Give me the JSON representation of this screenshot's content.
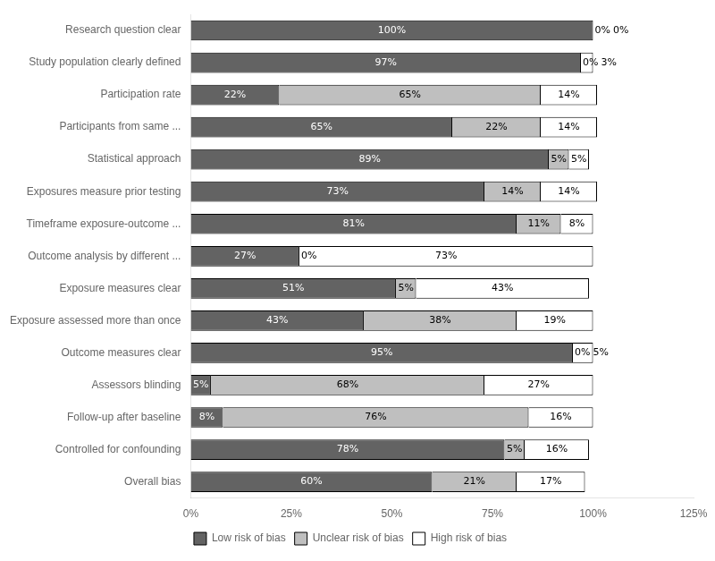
{
  "chart_data": {
    "type": "bar",
    "orientation": "horizontal",
    "stacked": true,
    "categories": [
      "Research question clear",
      "Study population clearly defined",
      "Participation rate",
      "Participants from same ...",
      "Statistical approach",
      "Exposures measure prior testing",
      "Timeframe exposure-outcome ...",
      "Outcome analysis by different ...",
      "Exposure measures clear",
      "Exposure assessed more than once",
      "Outcome measures clear",
      "Assessors blinding",
      "Follow-up after baseline",
      "Controlled for confounding",
      "Overall bias"
    ],
    "series": [
      {
        "name": "Low risk of bias",
        "color": "#636363",
        "values": [
          100,
          97,
          22,
          65,
          89,
          73,
          81,
          27,
          51,
          43,
          95,
          5,
          8,
          78,
          60
        ],
        "value_labels": [
          "100%",
          "97%",
          "22%",
          "65%",
          "89%",
          "73%",
          "81%",
          "27%",
          "51%",
          "43%",
          "95%",
          "5%",
          "8%",
          "78%",
          "60%"
        ]
      },
      {
        "name": "Unclear risk of bias",
        "color": "#BFBFBF",
        "values": [
          0,
          0,
          65,
          22,
          5,
          14,
          11,
          0,
          5,
          38,
          0,
          68,
          76,
          5,
          21
        ],
        "value_labels": [
          "0%",
          "0%",
          "65%",
          "22%",
          "5%",
          "14%",
          "11%",
          "0%",
          "5%",
          "38%",
          "0%",
          "68%",
          "76%",
          "5%",
          "21%"
        ]
      },
      {
        "name": "High risk of bias",
        "color": "#FFFFFF",
        "values": [
          0,
          3,
          14,
          14,
          5,
          14,
          8,
          73,
          43,
          19,
          5,
          27,
          16,
          16,
          17
        ],
        "value_labels": [
          "0%",
          "3%",
          "14%",
          "14%",
          "5%",
          "14%",
          "8%",
          "73%",
          "43%",
          "19%",
          "5%",
          "27%",
          "16%",
          "16%",
          "17%"
        ]
      }
    ],
    "xlim": [
      0,
      125
    ],
    "xticks": [
      {
        "value": 0,
        "label": "0%"
      },
      {
        "value": 25,
        "label": "25%"
      },
      {
        "value": 50,
        "label": "50%"
      },
      {
        "value": 75,
        "label": "75%"
      },
      {
        "value": 100,
        "label": "100%"
      },
      {
        "value": 125,
        "label": "125%"
      }
    ],
    "grid": false,
    "legend": "bottom",
    "data_labels": true
  }
}
